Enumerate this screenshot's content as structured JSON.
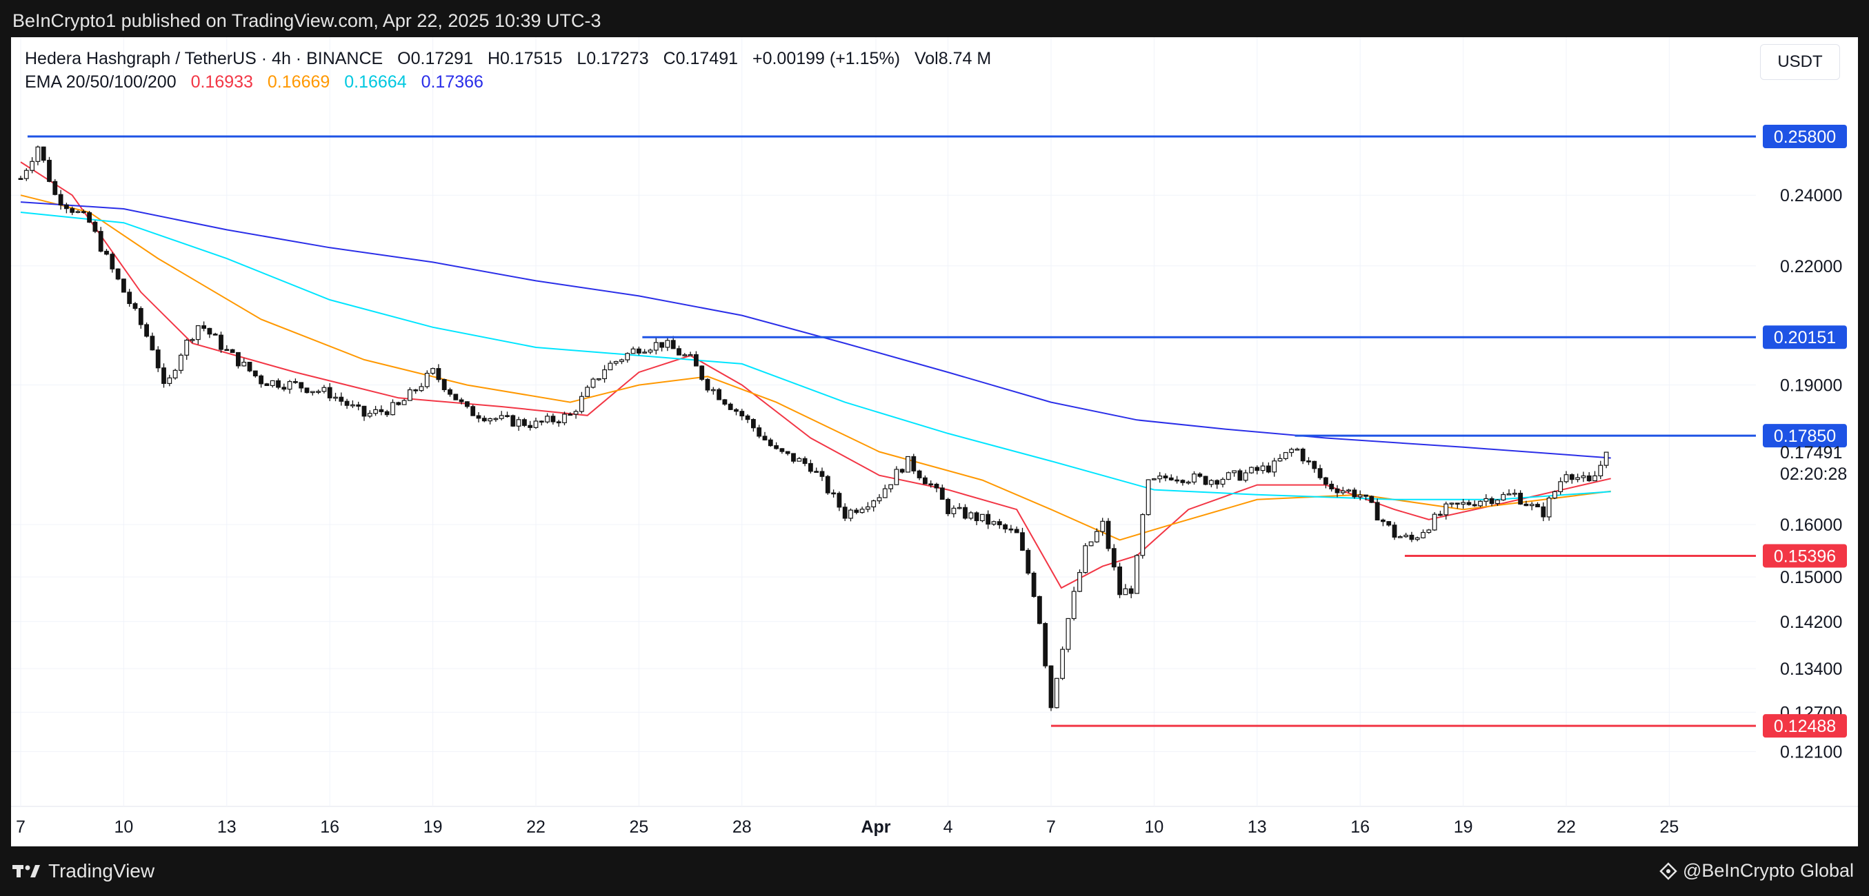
{
  "header": {
    "publisher_text": "BeInCrypto1 published on TradingView.com, Apr 22, 2025 10:39 UTC-3"
  },
  "legend": {
    "symbol": "Hedera Hashgraph / TetherUS · 4h · BINANCE",
    "open": "O0.17291",
    "high": "H0.17515",
    "low": "L0.17273",
    "close": "C0.17491",
    "change": "+0.00199 (+1.15%)",
    "volume": "Vol8.74 M",
    "ema_label": "EMA 20/50/100/200",
    "ema_values": [
      {
        "value": "0.16933",
        "color": "#f23645"
      },
      {
        "value": "0.16669",
        "color": "#ff9800"
      },
      {
        "value": "0.16664",
        "color": "#00e5ff"
      },
      {
        "value": "0.17366",
        "color": "#2a2ee8"
      }
    ]
  },
  "currency": "USDT",
  "footer": {
    "brand": "TradingView",
    "credit": "@BeInCrypto Global"
  },
  "colors": {
    "up": "#ffffff",
    "down": "#131313",
    "support": "#f23645",
    "resistance": "#1e53e5",
    "grid": "#f0f3fa"
  },
  "chart_data": {
    "type": "candlestick",
    "title": "Hedera Hashgraph / TetherUS · 4h · BINANCE",
    "x_ticks": [
      "7",
      "10",
      "13",
      "16",
      "19",
      "22",
      "25",
      "28",
      "Apr",
      "4",
      "7",
      "10",
      "13",
      "16",
      "19",
      "22",
      "25"
    ],
    "y_ticks": [
      "0.12100",
      "0.12700",
      "0.13400",
      "0.14200",
      "0.15000",
      "0.16000",
      "0.19000",
      "0.22000",
      "0.24000"
    ],
    "y_range": [
      0.117,
      0.266
    ],
    "current_price": {
      "value": "0.17491",
      "countdown": "02:20:28"
    },
    "levels": [
      {
        "label": "0.25800",
        "value": 0.258,
        "kind": "resistance",
        "start_day": 0.2
      },
      {
        "label": "0.20151",
        "value": 0.20151,
        "kind": "resistance",
        "start_day": 18.1
      },
      {
        "label": "0.17850",
        "value": 0.1785,
        "kind": "resistance",
        "start_day": 37.1
      },
      {
        "label": "0.15396",
        "value": 0.15396,
        "kind": "support",
        "start_day": 40.3
      },
      {
        "label": "0.12488",
        "value": 0.12488,
        "kind": "support",
        "start_day": 30.0
      }
    ],
    "price_path": [
      {
        "day": 0.0,
        "price": 0.245
      },
      {
        "day": 0.5,
        "price": 0.255
      },
      {
        "day": 1.0,
        "price": 0.24
      },
      {
        "day": 2.0,
        "price": 0.232
      },
      {
        "day": 2.6,
        "price": 0.22
      },
      {
        "day": 3.3,
        "price": 0.208
      },
      {
        "day": 3.9,
        "price": 0.198
      },
      {
        "day": 4.2,
        "price": 0.188
      },
      {
        "day": 4.6,
        "price": 0.197
      },
      {
        "day": 5.2,
        "price": 0.205
      },
      {
        "day": 6.0,
        "price": 0.198
      },
      {
        "day": 7.0,
        "price": 0.191
      },
      {
        "day": 8.0,
        "price": 0.19
      },
      {
        "day": 9.0,
        "price": 0.188
      },
      {
        "day": 10.0,
        "price": 0.183
      },
      {
        "day": 11.0,
        "price": 0.185
      },
      {
        "day": 12.0,
        "price": 0.193
      },
      {
        "day": 13.0,
        "price": 0.184
      },
      {
        "day": 14.0,
        "price": 0.182
      },
      {
        "day": 15.0,
        "price": 0.181
      },
      {
        "day": 16.0,
        "price": 0.183
      },
      {
        "day": 17.0,
        "price": 0.194
      },
      {
        "day": 18.0,
        "price": 0.199
      },
      {
        "day": 18.7,
        "price": 0.2
      },
      {
        "day": 19.5,
        "price": 0.196
      },
      {
        "day": 20.0,
        "price": 0.19
      },
      {
        "day": 21.0,
        "price": 0.183
      },
      {
        "day": 22.0,
        "price": 0.175
      },
      {
        "day": 23.0,
        "price": 0.172
      },
      {
        "day": 24.0,
        "price": 0.162
      },
      {
        "day": 25.0,
        "price": 0.166
      },
      {
        "day": 25.8,
        "price": 0.173
      },
      {
        "day": 26.5,
        "price": 0.168
      },
      {
        "day": 27.0,
        "price": 0.163
      },
      {
        "day": 28.0,
        "price": 0.161
      },
      {
        "day": 29.0,
        "price": 0.158
      },
      {
        "day": 29.6,
        "price": 0.145
      },
      {
        "day": 30.0,
        "price": 0.128
      },
      {
        "day": 30.4,
        "price": 0.14
      },
      {
        "day": 31.0,
        "price": 0.155
      },
      {
        "day": 31.5,
        "price": 0.16
      },
      {
        "day": 32.0,
        "price": 0.147
      },
      {
        "day": 32.4,
        "price": 0.148
      },
      {
        "day": 32.8,
        "price": 0.168
      },
      {
        "day": 33.5,
        "price": 0.17
      },
      {
        "day": 34.5,
        "price": 0.169
      },
      {
        "day": 35.5,
        "price": 0.17
      },
      {
        "day": 36.5,
        "price": 0.172
      },
      {
        "day": 37.1,
        "price": 0.176
      },
      {
        "day": 38.0,
        "price": 0.168
      },
      {
        "day": 39.0,
        "price": 0.166
      },
      {
        "day": 40.0,
        "price": 0.158
      },
      {
        "day": 40.5,
        "price": 0.157
      },
      {
        "day": 41.5,
        "price": 0.163
      },
      {
        "day": 42.5,
        "price": 0.165
      },
      {
        "day": 43.5,
        "price": 0.166
      },
      {
        "day": 44.3,
        "price": 0.162
      },
      {
        "day": 45.0,
        "price": 0.171
      },
      {
        "day": 45.7,
        "price": 0.168
      },
      {
        "day": 46.2,
        "price": 0.175
      }
    ],
    "ema_series": [
      {
        "name": "EMA 20",
        "color": "#f23645",
        "points": [
          {
            "day": 0.0,
            "price": 0.25
          },
          {
            "day": 1.5,
            "price": 0.24
          },
          {
            "day": 3.5,
            "price": 0.213
          },
          {
            "day": 5.0,
            "price": 0.2
          },
          {
            "day": 8.0,
            "price": 0.193
          },
          {
            "day": 11.0,
            "price": 0.187
          },
          {
            "day": 14.0,
            "price": 0.185
          },
          {
            "day": 16.5,
            "price": 0.183
          },
          {
            "day": 18.0,
            "price": 0.193
          },
          {
            "day": 19.5,
            "price": 0.197
          },
          {
            "day": 21.0,
            "price": 0.19
          },
          {
            "day": 23.0,
            "price": 0.178
          },
          {
            "day": 25.0,
            "price": 0.17
          },
          {
            "day": 27.0,
            "price": 0.167
          },
          {
            "day": 29.0,
            "price": 0.163
          },
          {
            "day": 30.3,
            "price": 0.148
          },
          {
            "day": 31.5,
            "price": 0.152
          },
          {
            "day": 32.5,
            "price": 0.154
          },
          {
            "day": 34.0,
            "price": 0.163
          },
          {
            "day": 36.0,
            "price": 0.168
          },
          {
            "day": 38.0,
            "price": 0.168
          },
          {
            "day": 40.0,
            "price": 0.163
          },
          {
            "day": 41.0,
            "price": 0.161
          },
          {
            "day": 43.0,
            "price": 0.164
          },
          {
            "day": 46.3,
            "price": 0.16933
          }
        ]
      },
      {
        "name": "EMA 50",
        "color": "#ff9800",
        "points": [
          {
            "day": 0.0,
            "price": 0.24
          },
          {
            "day": 2.0,
            "price": 0.235
          },
          {
            "day": 4.0,
            "price": 0.222
          },
          {
            "day": 7.0,
            "price": 0.206
          },
          {
            "day": 10.0,
            "price": 0.196
          },
          {
            "day": 13.0,
            "price": 0.19
          },
          {
            "day": 16.0,
            "price": 0.186
          },
          {
            "day": 18.0,
            "price": 0.19
          },
          {
            "day": 20.0,
            "price": 0.192
          },
          {
            "day": 22.0,
            "price": 0.186
          },
          {
            "day": 25.0,
            "price": 0.175
          },
          {
            "day": 28.0,
            "price": 0.169
          },
          {
            "day": 30.0,
            "price": 0.163
          },
          {
            "day": 32.0,
            "price": 0.157
          },
          {
            "day": 33.5,
            "price": 0.16
          },
          {
            "day": 36.0,
            "price": 0.165
          },
          {
            "day": 39.0,
            "price": 0.166
          },
          {
            "day": 42.0,
            "price": 0.163
          },
          {
            "day": 46.3,
            "price": 0.16669
          }
        ]
      },
      {
        "name": "EMA 100",
        "color": "#00e5ff",
        "points": [
          {
            "day": 0.0,
            "price": 0.235
          },
          {
            "day": 3.0,
            "price": 0.232
          },
          {
            "day": 6.0,
            "price": 0.222
          },
          {
            "day": 9.0,
            "price": 0.211
          },
          {
            "day": 12.0,
            "price": 0.204
          },
          {
            "day": 15.0,
            "price": 0.199
          },
          {
            "day": 18.0,
            "price": 0.197
          },
          {
            "day": 21.0,
            "price": 0.195
          },
          {
            "day": 24.0,
            "price": 0.186
          },
          {
            "day": 27.0,
            "price": 0.179
          },
          {
            "day": 30.0,
            "price": 0.173
          },
          {
            "day": 33.0,
            "price": 0.167
          },
          {
            "day": 36.0,
            "price": 0.166
          },
          {
            "day": 40.0,
            "price": 0.165
          },
          {
            "day": 43.0,
            "price": 0.165
          },
          {
            "day": 46.3,
            "price": 0.16664
          }
        ]
      },
      {
        "name": "EMA 200",
        "color": "#2a2ee8",
        "points": [
          {
            "day": 0.0,
            "price": 0.238
          },
          {
            "day": 3.0,
            "price": 0.236
          },
          {
            "day": 6.0,
            "price": 0.23
          },
          {
            "day": 9.0,
            "price": 0.225
          },
          {
            "day": 12.0,
            "price": 0.221
          },
          {
            "day": 15.0,
            "price": 0.216
          },
          {
            "day": 18.0,
            "price": 0.212
          },
          {
            "day": 21.0,
            "price": 0.207
          },
          {
            "day": 24.0,
            "price": 0.2
          },
          {
            "day": 27.0,
            "price": 0.193
          },
          {
            "day": 30.0,
            "price": 0.186
          },
          {
            "day": 32.5,
            "price": 0.182
          },
          {
            "day": 35.0,
            "price": 0.18
          },
          {
            "day": 38.0,
            "price": 0.178
          },
          {
            "day": 42.0,
            "price": 0.176
          },
          {
            "day": 46.3,
            "price": 0.17366
          }
        ]
      }
    ]
  }
}
